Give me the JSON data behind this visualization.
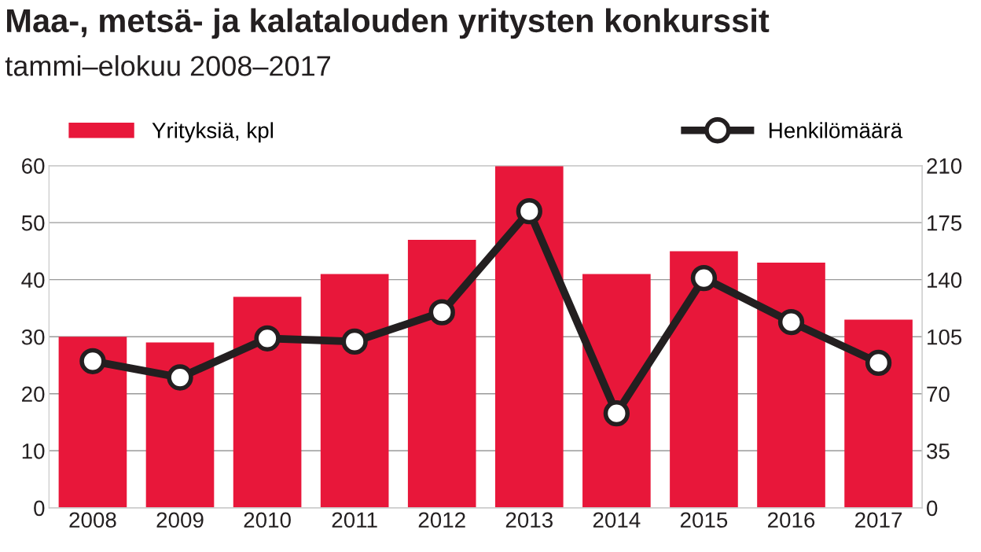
{
  "chart_data": {
    "type": "bar",
    "title": "Maa-, metsä- ja kalatalouden yritysten konkurssit",
    "subtitle": "tammi–elokuu 2008–2017",
    "categories": [
      "2008",
      "2009",
      "2010",
      "2011",
      "2012",
      "2013",
      "2014",
      "2015",
      "2016",
      "2017"
    ],
    "series": [
      {
        "name": "Yrityksiä, kpl",
        "color": "#e8173a",
        "values": [
          30,
          29,
          37,
          41,
          47,
          60,
          41,
          45,
          43,
          33
        ]
      },
      {
        "name": "Henkilömäärä",
        "type": "line",
        "axis": "y2",
        "color": "#231f20",
        "marker": "circle",
        "values": [
          90,
          80,
          104,
          102,
          120,
          182,
          58,
          141,
          114,
          89
        ]
      }
    ],
    "ylim": [
      0,
      60
    ],
    "yticks": [
      0,
      10,
      20,
      30,
      40,
      50,
      60
    ],
    "y2lim": [
      0,
      210
    ],
    "y2ticks": [
      0,
      35,
      70,
      105,
      140,
      175,
      210
    ],
    "grid": "y",
    "legend": "top"
  }
}
